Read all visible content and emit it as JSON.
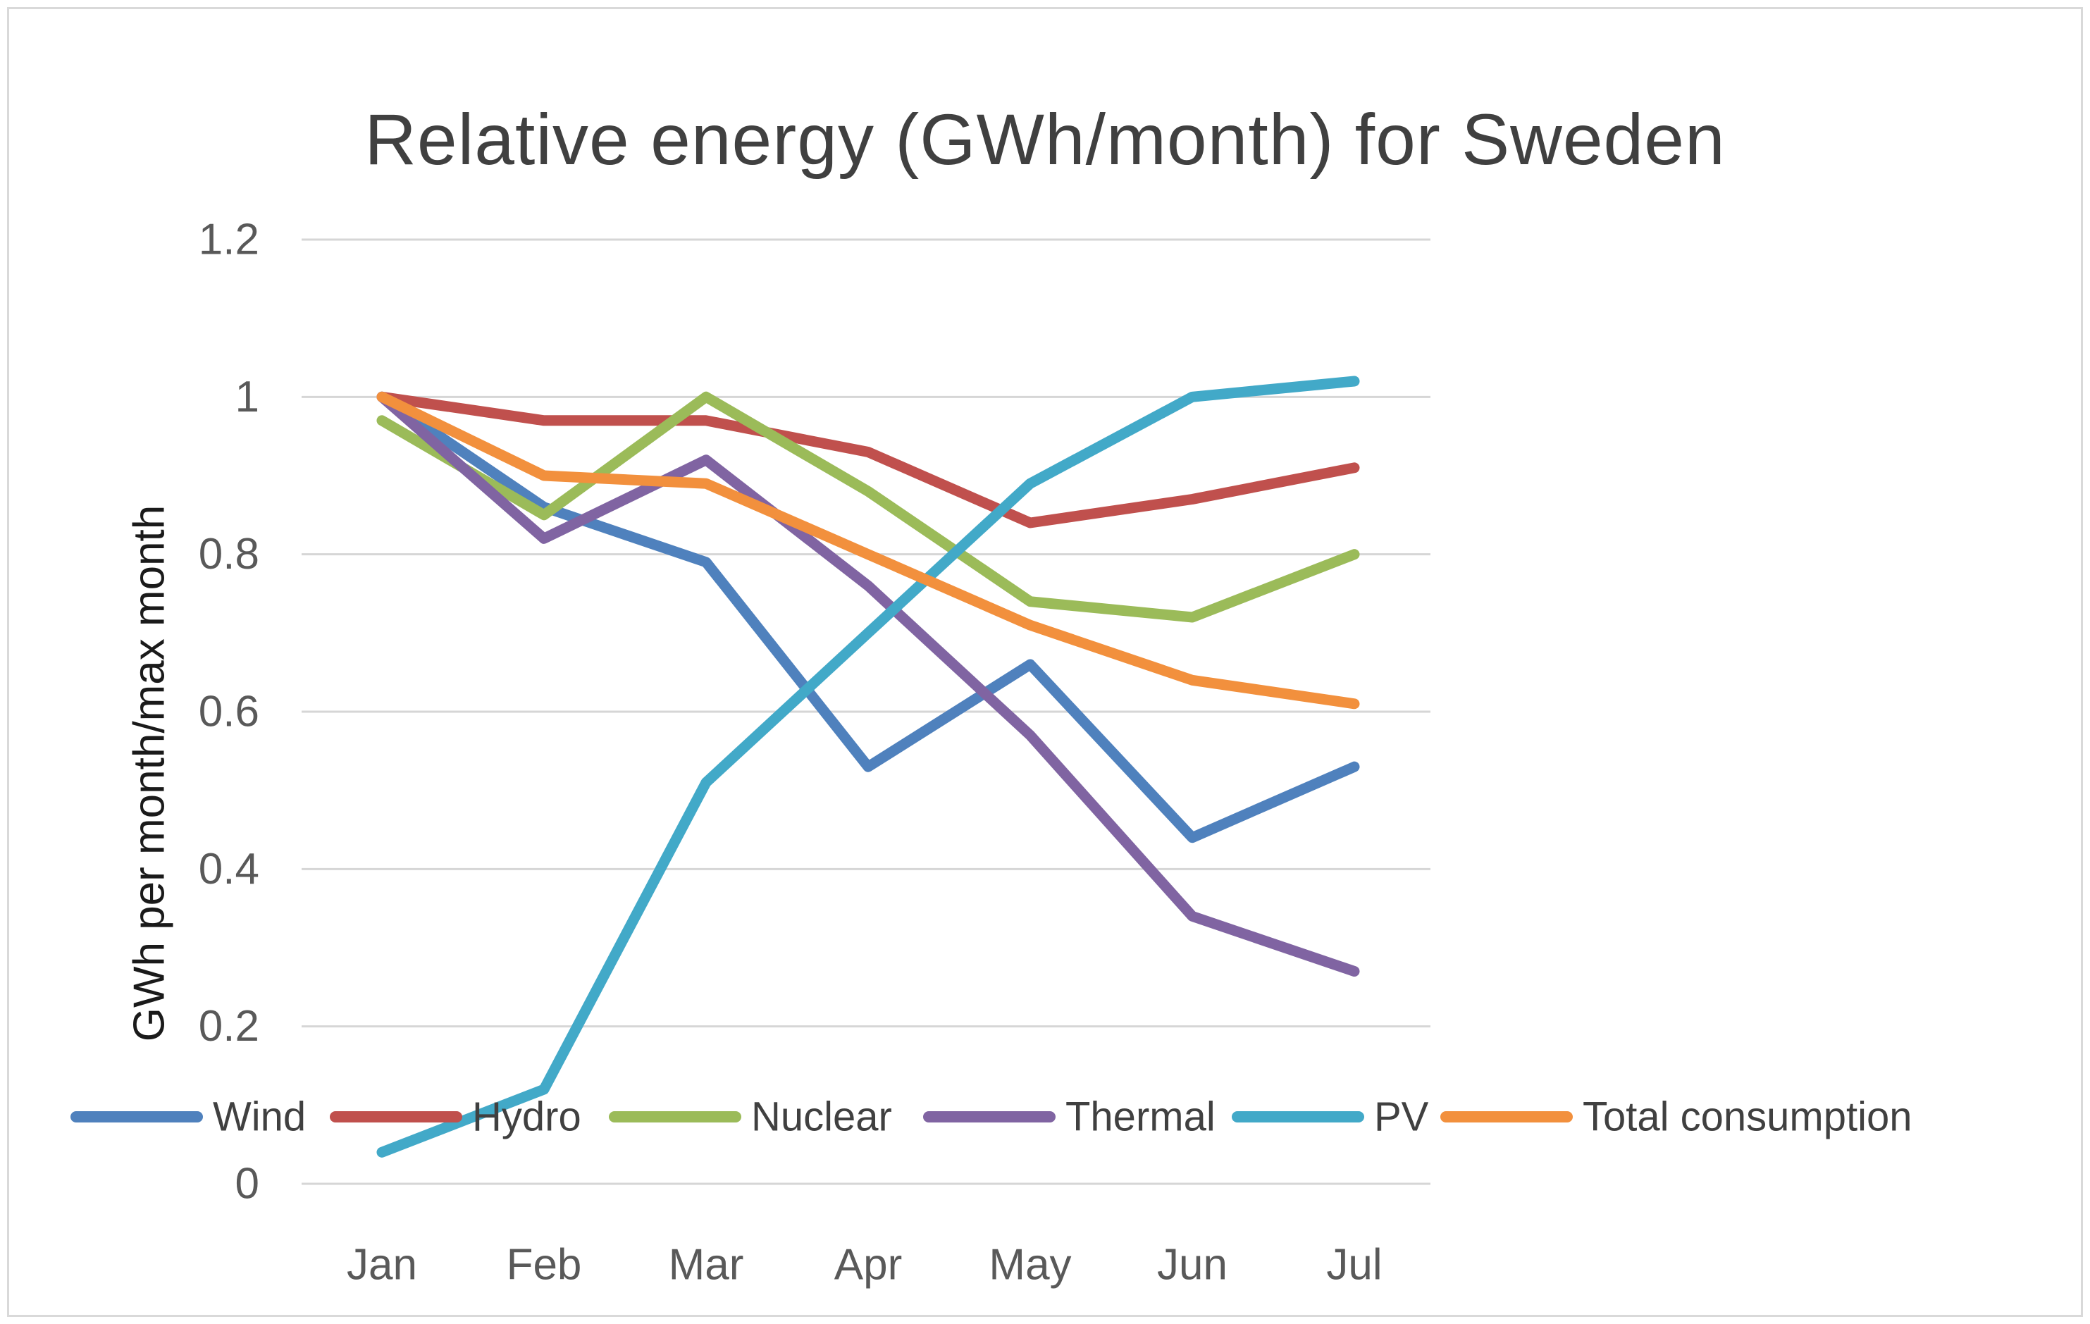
{
  "frame": {
    "background_color": "#FFFFFF",
    "border_color": "#D9D9D9"
  },
  "chart_data": {
    "type": "line",
    "title": "Relative energy (GWh/month) for Sweden",
    "ylabel": "GWh per month/max month",
    "xlabel": "",
    "categories": [
      "Jan",
      "Feb",
      "Mar",
      "Apr",
      "May",
      "Jun",
      "Jul"
    ],
    "ylim": [
      0,
      1.2
    ],
    "ytick_values": [
      0,
      0.2,
      0.4,
      0.6,
      0.8,
      1,
      1.2
    ],
    "ytick_labels": [
      "0",
      "0.2",
      "0.4",
      "0.6",
      "0.8",
      "1",
      "1.2"
    ],
    "grid": "horizontal-only",
    "legend_position": "bottom-overlay",
    "series": [
      {
        "name": "Wind",
        "color": "#4F81BD",
        "values": [
          1.0,
          0.86,
          0.79,
          0.53,
          0.66,
          0.44,
          0.53
        ]
      },
      {
        "name": "Hydro",
        "color": "#C0504D",
        "values": [
          1.0,
          0.97,
          0.97,
          0.93,
          0.84,
          0.87,
          0.91
        ]
      },
      {
        "name": "Nuclear",
        "color": "#9BBB59",
        "values": [
          0.97,
          0.85,
          1.0,
          0.88,
          0.74,
          0.72,
          0.8
        ]
      },
      {
        "name": "Thermal",
        "color": "#8064A2",
        "values": [
          1.0,
          0.82,
          0.92,
          0.76,
          0.57,
          0.34,
          0.27
        ]
      },
      {
        "name": "PV",
        "color": "#42A9C8",
        "values": [
          0.04,
          0.12,
          0.51,
          0.7,
          0.89,
          1.0,
          1.02
        ]
      },
      {
        "name": "Total consumption",
        "color": "#F2903D",
        "values": [
          1.0,
          0.9,
          0.89,
          0.8,
          0.71,
          0.64,
          0.61
        ]
      }
    ],
    "style": {
      "gridline_color": "#D6D6D6",
      "title_color": "#404040",
      "tick_color": "#595959",
      "axis_title_color": "#1A1A1A",
      "legend_text_color": "#404040"
    }
  }
}
